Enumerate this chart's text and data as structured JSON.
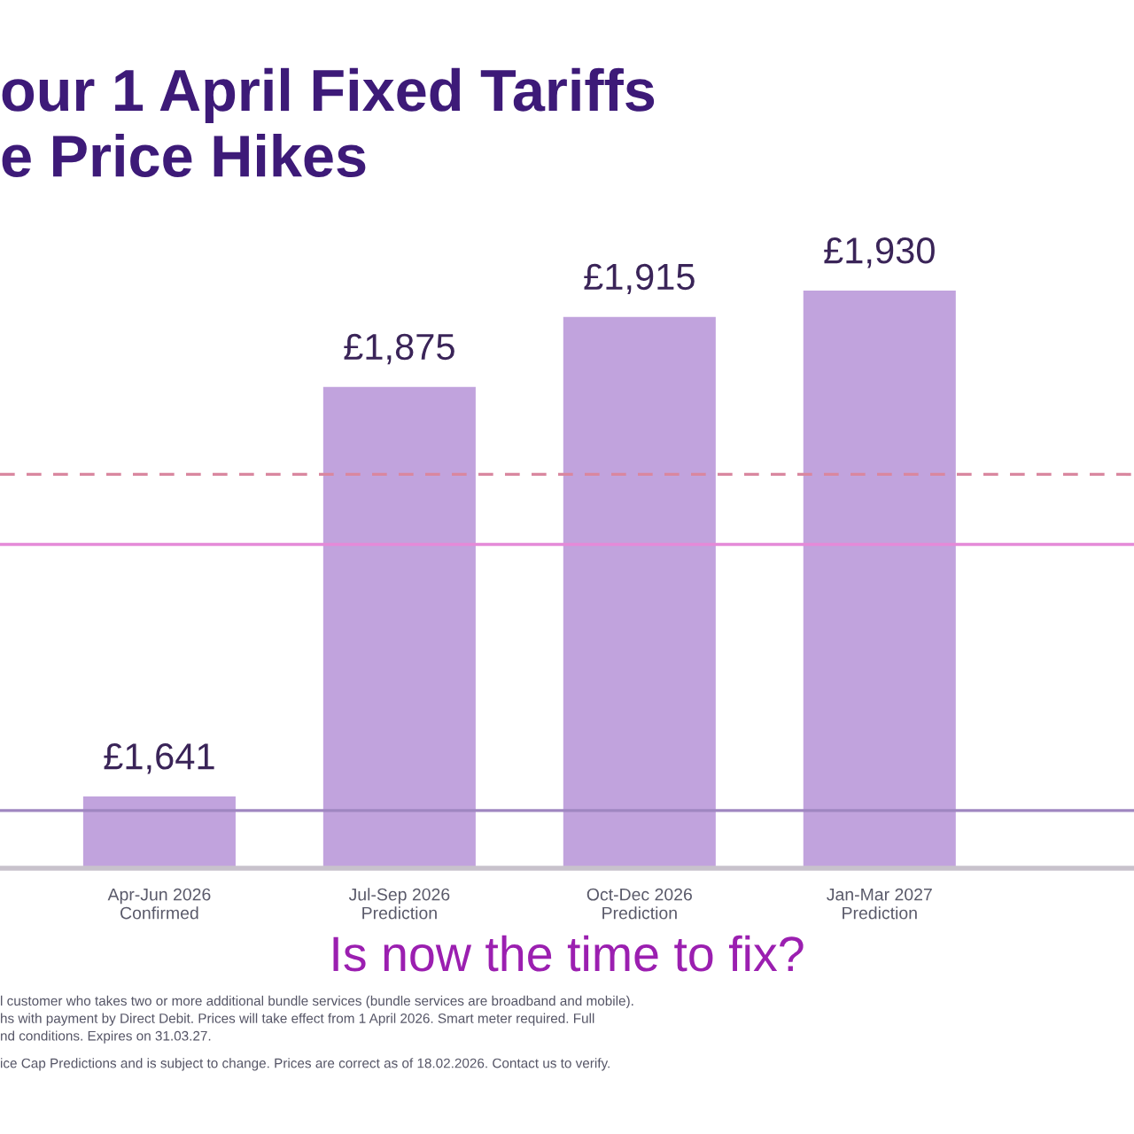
{
  "chart_data": {
    "type": "bar",
    "title": "our 1 April Fixed Tariffs\ne Price Hikes",
    "categories": [
      "Apr-Jun 2026\nConfirmed",
      "Jul-Sep 2026\nPrediction",
      "Oct-Dec 2026\nPrediction",
      "Jan-Mar 2027\nPrediction"
    ],
    "values": [
      1641,
      1875,
      1915,
      1930
    ],
    "value_labels": [
      "£1,641",
      "£1,875",
      "£1,915",
      "£1,930"
    ],
    "color": "#c1a3dd",
    "ylim": [
      1600,
      1930
    ],
    "tick_labels": "x",
    "grid": false,
    "ref_lines": [
      {
        "axis": "y",
        "value": 1825,
        "color": "#d9879f",
        "line_style": "dashed"
      },
      {
        "axis": "y",
        "value": 1785,
        "color": "#e58ad8",
        "line_style": "solid"
      },
      {
        "axis": "y",
        "value": 1633,
        "color": "#9f86c0",
        "line_style": "solid"
      }
    ],
    "annotations": [
      "Is now the time to fix?",
      "l customer who takes two or more additional bundle services (bundle services are broadband and mobile).\nhs with payment by Direct Debit. Prices will take effect from 1 April 2026. Smart meter required. Full\nnd conditions. Expires on 31.03.27.",
      "ice Cap Predictions and is subject to change. Prices are correct as of 18.02.2026. Contact us to verify."
    ]
  }
}
